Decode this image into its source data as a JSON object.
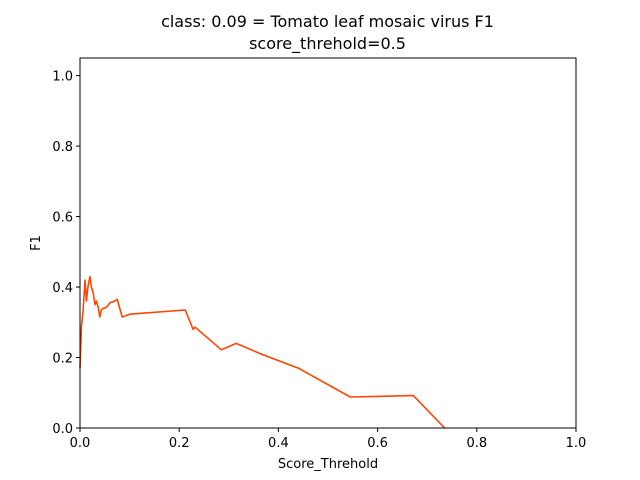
{
  "chart_data": {
    "type": "line",
    "title_line1": "class: 0.09 = Tomato leaf mosaic virus F1",
    "title_line2": "score_threhold=0.5",
    "xlabel": "Score_Threhold",
    "ylabel": "F1",
    "xlim": [
      0.0,
      1.0
    ],
    "ylim": [
      0.0,
      1.05
    ],
    "xticks": [
      "0.0",
      "0.2",
      "0.4",
      "0.6",
      "0.8",
      "1.0"
    ],
    "yticks": [
      "0.0",
      "0.2",
      "0.4",
      "0.6",
      "0.8",
      "1.0"
    ],
    "grid": false,
    "series": [
      {
        "color": "#ff4500",
        "x": [
          0.0,
          0.003,
          0.006,
          0.01,
          0.013,
          0.016,
          0.02,
          0.023,
          0.027,
          0.03,
          0.033,
          0.037,
          0.04,
          0.043,
          0.047,
          0.05,
          0.055,
          0.06,
          0.07,
          0.075,
          0.085,
          0.1,
          0.212,
          0.228,
          0.232,
          0.285,
          0.315,
          0.365,
          0.44,
          0.545,
          0.672,
          0.735
        ],
        "y": [
          0.17,
          0.29,
          0.33,
          0.42,
          0.36,
          0.4,
          0.43,
          0.4,
          0.38,
          0.35,
          0.36,
          0.34,
          0.315,
          0.335,
          0.34,
          0.34,
          0.345,
          0.355,
          0.36,
          0.365,
          0.315,
          0.323,
          0.335,
          0.28,
          0.286,
          0.222,
          0.24,
          0.21,
          0.17,
          0.088,
          0.092,
          0.0
        ]
      }
    ]
  }
}
